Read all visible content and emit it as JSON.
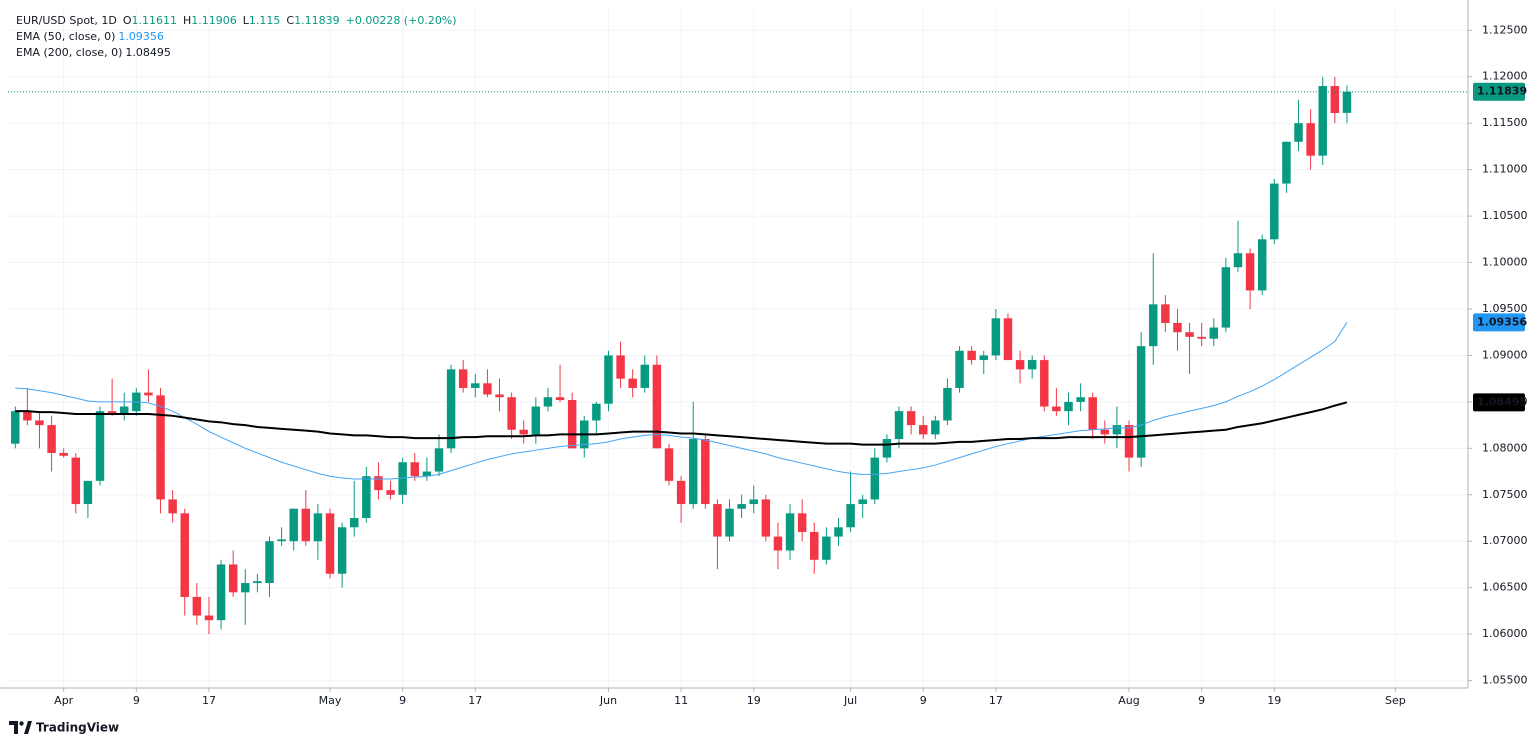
{
  "chart_data": {
    "type": "candlestick",
    "title": "EUR/USD Spot, 1D",
    "ohlc_labels": [
      "O",
      "H",
      "L",
      "C"
    ],
    "change": "+0.00228 (+0.20%)",
    "up_color": "#089981",
    "down_color": "#f23645",
    "candles": {
      "open": [
        1.0805,
        1.084,
        1.083,
        1.0825,
        1.0795,
        1.079,
        1.074,
        1.0765,
        1.084,
        1.0838,
        1.084,
        1.086,
        1.0857,
        1.0745,
        1.073,
        1.064,
        1.062,
        1.0615,
        1.0675,
        1.0645,
        1.0655,
        1.0655,
        1.07,
        1.07,
        1.0735,
        1.07,
        1.073,
        1.0665,
        1.0715,
        1.0725,
        1.077,
        1.0755,
        1.075,
        1.0785,
        1.077,
        1.0775,
        1.08,
        1.0885,
        1.0865,
        1.087,
        1.0858,
        1.0855,
        1.082,
        1.0815,
        1.0845,
        1.0855,
        1.0852,
        1.08,
        1.083,
        1.0848,
        1.09,
        1.0875,
        1.0865,
        1.089,
        1.08,
        1.0765,
        1.074,
        1.081,
        1.074,
        1.0705,
        1.0735,
        1.074,
        1.0745,
        1.0705,
        1.069,
        1.073,
        1.071,
        1.068,
        1.0705,
        1.0715,
        1.074,
        1.0745,
        1.079,
        1.081,
        1.084,
        1.0825,
        1.0815,
        1.083,
        1.0865,
        1.0905,
        1.0895,
        1.09,
        1.094,
        1.0895,
        1.0885,
        1.0895,
        1.0845,
        1.084,
        1.085,
        1.0855,
        1.082,
        1.0815,
        1.0825,
        1.079,
        1.091,
        1.0955,
        1.0935,
        1.0925,
        1.092,
        1.0918,
        1.093,
        1.0995,
        1.101,
        1.097,
        1.1025,
        1.1085,
        1.113,
        1.115,
        1.1115,
        1.119,
        1.11611
      ],
      "high": [
        1.0845,
        1.0865,
        1.084,
        1.0835,
        1.08,
        1.0795,
        1.076,
        1.0845,
        1.0875,
        1.086,
        1.0865,
        1.0885,
        1.0865,
        1.0755,
        1.0735,
        1.0655,
        1.064,
        1.068,
        1.069,
        1.067,
        1.0665,
        1.0705,
        1.0715,
        1.0735,
        1.0755,
        1.074,
        1.0735,
        1.072,
        1.0765,
        1.078,
        1.0785,
        1.0765,
        1.079,
        1.0795,
        1.079,
        1.0815,
        1.089,
        1.0895,
        1.088,
        1.0885,
        1.0875,
        1.086,
        1.083,
        1.0855,
        1.0865,
        1.089,
        1.086,
        1.0835,
        1.085,
        1.0905,
        1.0915,
        1.0885,
        1.09,
        1.09,
        1.0805,
        1.077,
        1.085,
        1.0815,
        1.0745,
        1.0745,
        1.075,
        1.076,
        1.075,
        1.072,
        1.074,
        1.0745,
        1.072,
        1.0715,
        1.0725,
        1.0775,
        1.075,
        1.08,
        1.0815,
        1.0845,
        1.0845,
        1.0835,
        1.0835,
        1.0875,
        1.091,
        1.091,
        1.0905,
        1.095,
        1.0945,
        1.0905,
        1.09,
        1.09,
        1.0865,
        1.086,
        1.087,
        1.086,
        1.083,
        1.0845,
        1.083,
        1.0925,
        1.101,
        1.0965,
        1.095,
        1.0935,
        1.0935,
        1.094,
        1.1005,
        1.1045,
        1.1015,
        1.103,
        1.109,
        1.113,
        1.1175,
        1.1165,
        1.12,
        1.12,
        1.11906
      ],
      "low": [
        1.08,
        1.0825,
        1.08,
        1.0775,
        1.079,
        1.073,
        1.0725,
        1.076,
        1.0835,
        1.083,
        1.0835,
        1.085,
        1.073,
        1.072,
        1.062,
        1.061,
        1.06,
        1.0605,
        1.064,
        1.061,
        1.0645,
        1.064,
        1.0695,
        1.069,
        1.0695,
        1.068,
        1.066,
        1.065,
        1.0705,
        1.072,
        1.0745,
        1.0745,
        1.074,
        1.0765,
        1.0765,
        1.077,
        1.0795,
        1.086,
        1.0855,
        1.0855,
        1.084,
        1.081,
        1.0805,
        1.0805,
        1.084,
        1.085,
        1.08,
        1.079,
        1.0815,
        1.084,
        1.0865,
        1.0855,
        1.086,
        1.08,
        1.076,
        1.072,
        1.0735,
        1.0735,
        1.067,
        1.07,
        1.0725,
        1.073,
        1.07,
        1.067,
        1.068,
        1.07,
        1.0665,
        1.0675,
        1.0695,
        1.071,
        1.0725,
        1.074,
        1.0785,
        1.08,
        1.0815,
        1.081,
        1.081,
        1.0825,
        1.086,
        1.089,
        1.088,
        1.0895,
        1.0895,
        1.087,
        1.0875,
        1.084,
        1.0835,
        1.0825,
        1.084,
        1.081,
        1.0805,
        1.08,
        1.0775,
        1.078,
        1.089,
        1.0925,
        1.0905,
        1.088,
        1.091,
        1.091,
        1.0925,
        1.099,
        1.095,
        1.0965,
        1.102,
        1.1075,
        1.112,
        1.11,
        1.1105,
        1.115,
        1.115
      ],
      "close": [
        1.084,
        1.083,
        1.0825,
        1.0795,
        1.0792,
        1.074,
        1.0765,
        1.084,
        1.0838,
        1.0845,
        1.086,
        1.0857,
        1.0745,
        1.073,
        1.064,
        1.062,
        1.0615,
        1.0675,
        1.0645,
        1.0655,
        1.0657,
        1.07,
        1.0702,
        1.0735,
        1.07,
        1.073,
        1.0665,
        1.0715,
        1.0725,
        1.077,
        1.0755,
        1.075,
        1.0785,
        1.077,
        1.0775,
        1.08,
        1.0885,
        1.0865,
        1.087,
        1.0858,
        1.0855,
        1.082,
        1.0815,
        1.0845,
        1.0855,
        1.0852,
        1.08,
        1.083,
        1.0848,
        1.09,
        1.0875,
        1.0865,
        1.089,
        1.08,
        1.0765,
        1.074,
        1.081,
        1.074,
        1.0705,
        1.0735,
        1.074,
        1.0745,
        1.0705,
        1.069,
        1.073,
        1.071,
        1.068,
        1.0705,
        1.0715,
        1.074,
        1.0745,
        1.079,
        1.081,
        1.084,
        1.0825,
        1.0815,
        1.083,
        1.0865,
        1.0905,
        1.0895,
        1.09,
        1.094,
        1.0895,
        1.0885,
        1.0895,
        1.0845,
        1.084,
        1.085,
        1.0855,
        1.082,
        1.0815,
        1.0825,
        1.079,
        1.091,
        1.0955,
        1.0935,
        1.0925,
        1.092,
        1.0918,
        1.093,
        1.0995,
        1.101,
        1.097,
        1.1025,
        1.1085,
        1.113,
        1.115,
        1.1115,
        1.119,
        1.1161,
        1.11839
      ]
    },
    "series": [
      {
        "name": "EMA (50, close, 0)",
        "color": "#42a5f5",
        "values": [
          1.0865,
          1.0864,
          1.0862,
          1.086,
          1.0857,
          1.0854,
          1.0851,
          1.085,
          1.085,
          1.085,
          1.085,
          1.0849,
          1.0845,
          1.084,
          1.0833,
          1.0826,
          1.0818,
          1.0812,
          1.0806,
          1.08,
          1.0795,
          1.079,
          1.0785,
          1.0781,
          1.0777,
          1.0773,
          1.077,
          1.0768,
          1.0767,
          1.0767,
          1.0767,
          1.0767,
          1.0768,
          1.0769,
          1.077,
          1.0772,
          1.0776,
          1.078,
          1.0784,
          1.0788,
          1.0791,
          1.0794,
          1.0796,
          1.0798,
          1.08,
          1.0802,
          1.0803,
          1.0804,
          1.0805,
          1.0807,
          1.081,
          1.0812,
          1.0814,
          1.0815,
          1.0814,
          1.0812,
          1.0811,
          1.0809,
          1.0806,
          1.0803,
          1.08,
          1.0797,
          1.0794,
          1.079,
          1.0787,
          1.0784,
          1.0781,
          1.0778,
          1.0775,
          1.0773,
          1.0772,
          1.0772,
          1.0773,
          1.0775,
          1.0777,
          1.0779,
          1.0782,
          1.0786,
          1.079,
          1.0794,
          1.0798,
          1.0802,
          1.0805,
          1.0808,
          1.0811,
          1.0813,
          1.0815,
          1.0817,
          1.0819,
          1.082,
          1.0821,
          1.0822,
          1.0822,
          1.0825,
          1.083,
          1.0834,
          1.0837,
          1.084,
          1.0843,
          1.0846,
          1.085,
          1.0856,
          1.0861,
          1.0867,
          1.0874,
          1.0882,
          1.089,
          1.0898,
          1.0906,
          1.0915,
          1.09356
        ]
      },
      {
        "name": "EMA (200, close, 0)",
        "color": "#000000",
        "values": [
          1.084,
          1.084,
          1.0839,
          1.0839,
          1.0838,
          1.0837,
          1.0837,
          1.0837,
          1.0837,
          1.0837,
          1.0837,
          1.0837,
          1.0836,
          1.0835,
          1.0833,
          1.0831,
          1.0829,
          1.0828,
          1.0826,
          1.0825,
          1.0823,
          1.0822,
          1.0821,
          1.082,
          1.0819,
          1.0818,
          1.0816,
          1.0815,
          1.0814,
          1.0814,
          1.0813,
          1.0812,
          1.0812,
          1.0811,
          1.0811,
          1.0811,
          1.0811,
          1.0812,
          1.0812,
          1.0813,
          1.0813,
          1.0813,
          1.0813,
          1.0814,
          1.0814,
          1.0815,
          1.0815,
          1.0815,
          1.0815,
          1.0816,
          1.0817,
          1.0818,
          1.0818,
          1.0818,
          1.0817,
          1.0816,
          1.0816,
          1.0815,
          1.0814,
          1.0813,
          1.0812,
          1.0811,
          1.081,
          1.0809,
          1.0808,
          1.0807,
          1.0806,
          1.0805,
          1.0805,
          1.0805,
          1.0804,
          1.0804,
          1.0804,
          1.0805,
          1.0805,
          1.0805,
          1.0805,
          1.0806,
          1.0807,
          1.0807,
          1.0808,
          1.0809,
          1.081,
          1.081,
          1.0811,
          1.0811,
          1.0811,
          1.0812,
          1.0812,
          1.0812,
          1.0812,
          1.0812,
          1.0812,
          1.0813,
          1.0814,
          1.0815,
          1.0816,
          1.0817,
          1.0818,
          1.0819,
          1.082,
          1.0823,
          1.0825,
          1.0827,
          1.083,
          1.0833,
          1.0836,
          1.0839,
          1.0842,
          1.0846,
          1.08495
        ]
      }
    ],
    "ylim": [
      1.0542,
      1.1274
    ],
    "yticks": [
      {
        "value": 1.055,
        "label": "1.05500"
      },
      {
        "value": 1.06,
        "label": "1.06000"
      },
      {
        "value": 1.065,
        "label": "1.06500"
      },
      {
        "value": 1.07,
        "label": "1.07000"
      },
      {
        "value": 1.075,
        "label": "1.07500"
      },
      {
        "value": 1.08,
        "label": "1.08000"
      },
      {
        "value": 1.085,
        "label": "1.08500"
      },
      {
        "value": 1.09,
        "label": "1.09000"
      },
      {
        "value": 1.095,
        "label": "1.09500"
      },
      {
        "value": 1.1,
        "label": "1.10000"
      },
      {
        "value": 1.105,
        "label": "1.10500"
      },
      {
        "value": 1.11,
        "label": "1.11000"
      },
      {
        "value": 1.115,
        "label": "1.11500"
      },
      {
        "value": 1.12,
        "label": "1.12000"
      },
      {
        "value": 1.125,
        "label": "1.12500"
      }
    ],
    "xlim": [
      -0.6,
      120
    ],
    "xticks": [
      {
        "value": 4,
        "label": "Apr"
      },
      {
        "value": 10,
        "label": "9"
      },
      {
        "value": 16,
        "label": "17"
      },
      {
        "value": 26,
        "label": "May"
      },
      {
        "value": 32,
        "label": "9"
      },
      {
        "value": 38,
        "label": "17"
      },
      {
        "value": 49,
        "label": "Jun"
      },
      {
        "value": 55,
        "label": "11"
      },
      {
        "value": 61,
        "label": "19"
      },
      {
        "value": 69,
        "label": "Jul"
      },
      {
        "value": 75,
        "label": "9"
      },
      {
        "value": 81,
        "label": "17"
      },
      {
        "value": 92,
        "label": "Aug"
      },
      {
        "value": 98,
        "label": "9"
      },
      {
        "value": 104,
        "label": "19"
      },
      {
        "value": 114,
        "label": "Sep"
      }
    ],
    "grid": true
  },
  "brand": "TradingView"
}
